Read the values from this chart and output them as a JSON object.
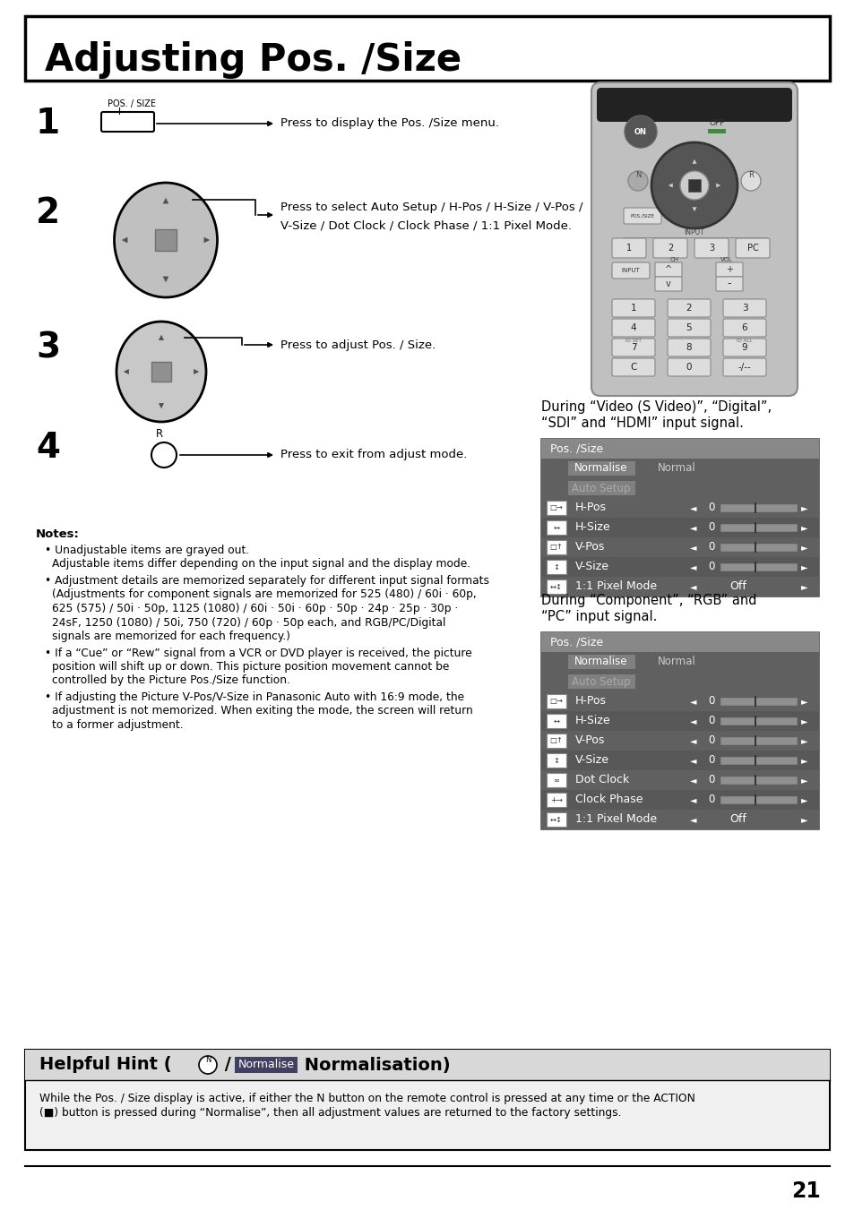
{
  "title": "Adjusting Pos. /Size",
  "bg_color": "#ffffff",
  "step1_text": "Press to display the Pos. /Size menu.",
  "step2_text_line1": "Press to select Auto Setup / H-Pos / H-Size / V-Pos /",
  "step2_text_line2": "V-Size / Dot Clock / Clock Phase / 1:1 Pixel Mode.",
  "step3_text": "Press to adjust Pos. / Size.",
  "step4_text": "Press to exit from adjust mode.",
  "notes_title": "Notes:",
  "note1": "Unadjustable items are grayed out.",
  "note1b": "Adjustable items differ depending on the input signal and the display mode.",
  "note2_lines": [
    "Adjustment details are memorized separately for different input signal formats",
    "(Adjustments for component signals are memorized for 525 (480) / 60i · 60p,",
    "625 (575) / 50i · 50p, 1125 (1080) / 60i · 50i · 60p · 50p · 24p · 25p · 30p ·",
    "24sF, 1250 (1080) / 50i, 750 (720) / 60p · 50p each, and RGB/PC/Digital",
    "signals are memorized for each frequency.)"
  ],
  "note3_lines": [
    "If a “Cue” or “Rew” signal from a VCR or DVD player is received, the picture",
    "position will shift up or down. This picture position movement cannot be",
    "controlled by the Picture Pos./Size function."
  ],
  "note4_lines": [
    "If adjusting the Picture V-Pos/V-Size in Panasonic Auto with 16:9 mode, the",
    "adjustment is not memorized. When exiting the mode, the screen will return",
    "to a former adjustment."
  ],
  "hint_body_line1": "While the Pos. / Size display is active, if either the N button on the remote control is pressed at any time or the ACTION",
  "hint_body_line2": "(■) button is pressed during “Normalise”, then all adjustment values are returned to the factory settings.",
  "page_num": "21",
  "menu1_title": "Pos. /Size",
  "menu1_label_line1": "During “Video (S Video)”, “Digital”,",
  "menu1_label_line2": "“SDI” and “HDMI” input signal.",
  "menu2_title": "Pos. /Size",
  "menu2_label_line1": "During “Component”, “RGB” and",
  "menu2_label_line2": "“PC” input signal.",
  "menu_bg": "#606060",
  "menu_title_bg": "#808080",
  "menu_norm_bg": "#888888",
  "menu_row_bg": "#505050",
  "menu_row_white": "#f0f0f0",
  "normalise_value": "Normal",
  "off_value": "Off"
}
